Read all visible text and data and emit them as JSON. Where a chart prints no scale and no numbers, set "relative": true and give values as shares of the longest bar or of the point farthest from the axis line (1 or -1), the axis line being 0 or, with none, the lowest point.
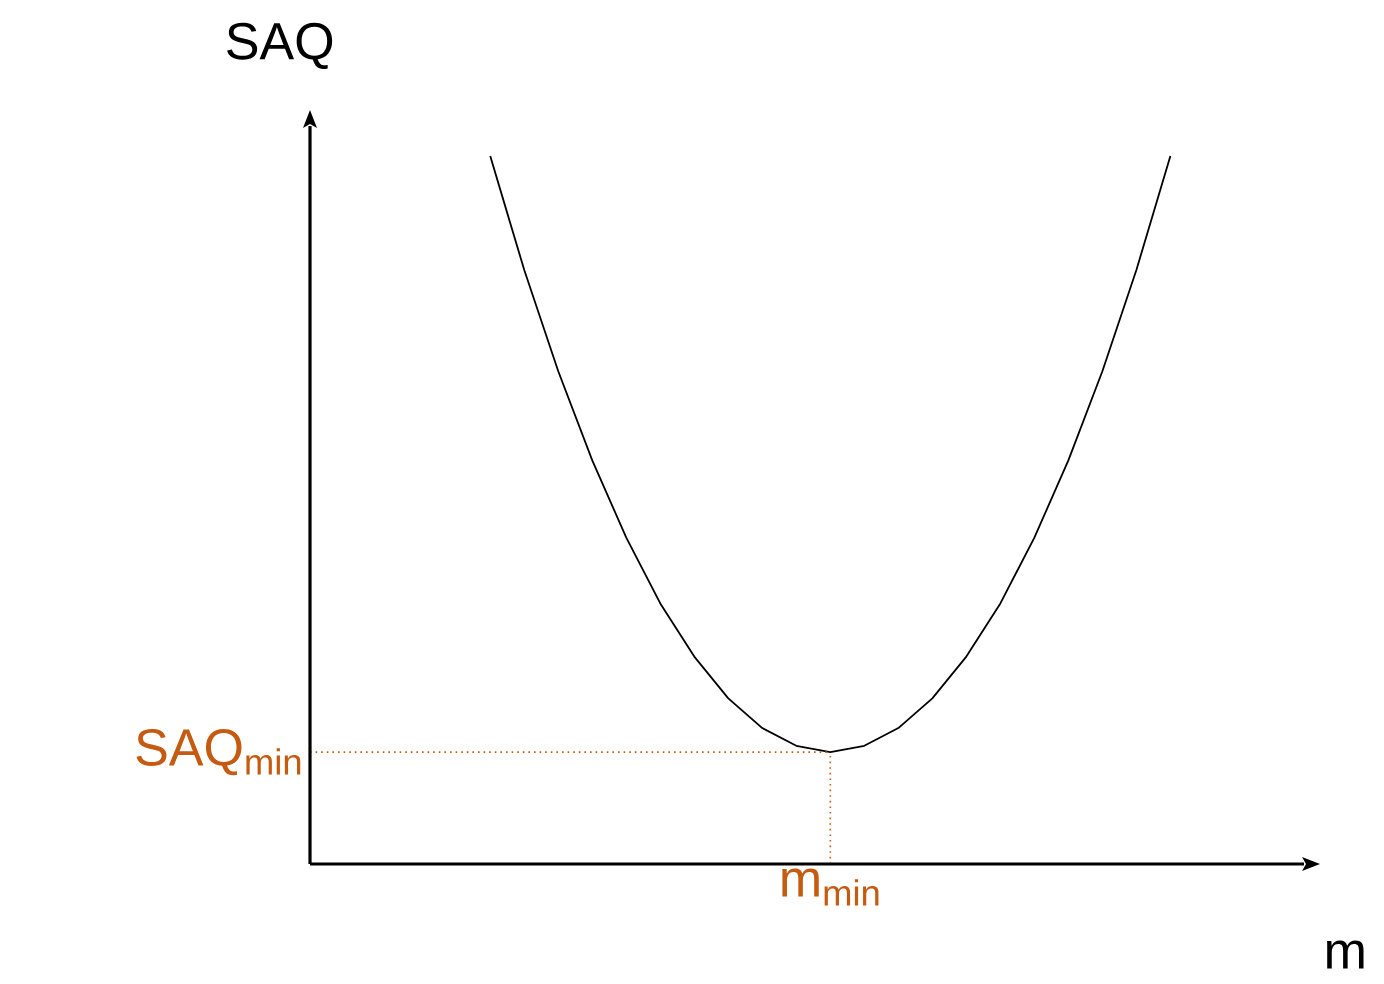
{
  "chart_data": {
    "type": "line",
    "relative": true,
    "xlabel": "m",
    "ylabel": "SAQ",
    "color": "#000000",
    "line_style": "solid",
    "marker": "none",
    "categories": [
      null,
      null,
      null,
      null,
      null,
      null,
      null,
      null,
      null,
      null,
      null,
      null,
      null,
      null,
      null,
      null,
      null,
      null,
      null,
      null,
      null
    ],
    "values": [
      1.0,
      0.839,
      0.696,
      0.57,
      0.461,
      0.368,
      0.293,
      0.234,
      0.192,
      0.167,
      0.158,
      0.167,
      0.192,
      0.234,
      0.293,
      0.368,
      0.461,
      0.57,
      0.696,
      0.839,
      1.0
    ],
    "ref_lines": [
      {
        "axis": "y",
        "value": 0.158,
        "label": "SAQ$_{min}$",
        "color": "#c55a11",
        "line_style": "dotted"
      }
    ],
    "annotations": [
      "m$_{min}$"
    ]
  }
}
